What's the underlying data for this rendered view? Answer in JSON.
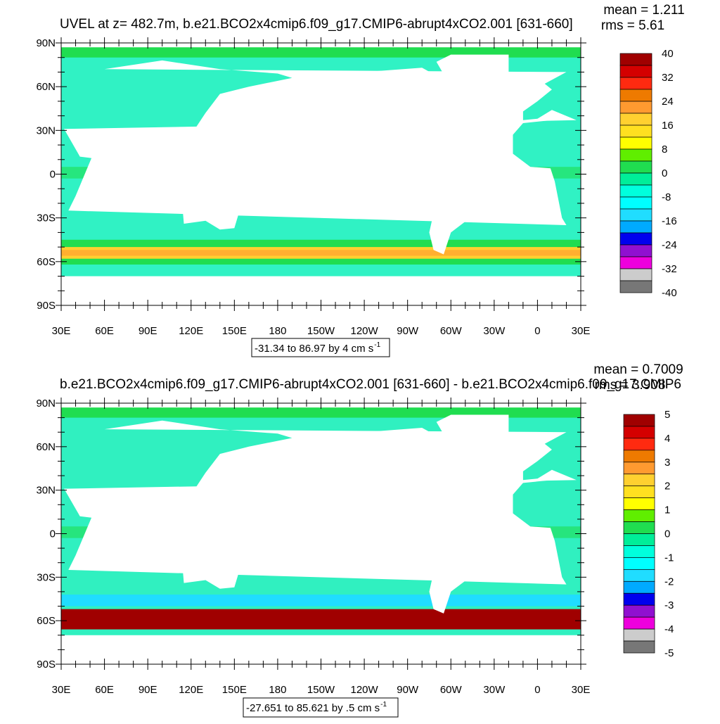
{
  "panels": [
    {
      "title": "UVEL at z= 482.7m, b.e21.BCO2x4cmip6.f09_g17.CMIP6-abrupt4xCO2.001 [631-660]",
      "mean": "mean = 1.211",
      "rms": "rms = 5.61",
      "lat_labels": [
        "90N",
        "60N",
        "30N",
        "0",
        "30S",
        "60S",
        "90S"
      ],
      "lon_labels": [
        "30E",
        "60E",
        "90E",
        "120E",
        "150E",
        "180",
        "150W",
        "120W",
        "90W",
        "60W",
        "30W",
        "0",
        "30E"
      ],
      "colorbar": {
        "labels": [
          "40",
          "32",
          "24",
          "16",
          "8",
          "0",
          "-8",
          "-16",
          "-24",
          "-32",
          "-40"
        ],
        "colors": [
          "#a00000",
          "#d40000",
          "#ff2a10",
          "#ee7a00",
          "#ff9a30",
          "#ffb040",
          "#ffd030",
          "#ffe020",
          "#ffff00",
          "#60ee00",
          "#20dd50",
          "#00ee99",
          "#00ffdd",
          "#00ffff",
          "#20ddff",
          "#00aaff",
          "#0070ff",
          "#0000ee",
          "#9010d0",
          "#ee00dd",
          "#cccccc",
          "#777777"
        ]
      },
      "range_text": "-31.34 to 86.97 by 4 cm s",
      "range_exp": "-1"
    },
    {
      "title": "b.e21.BCO2x4cmip6.f09_g17.CMIP6-abrupt4xCO2.001 [631-660] - b.e21.BCO2x4cmip6.f09_g17.CMIP6",
      "mean": "mean = 0.7009",
      "rms": "rms = 3.908",
      "lat_labels": [
        "90N",
        "60N",
        "30N",
        "0",
        "30S",
        "60S",
        "90S"
      ],
      "lon_labels": [
        "30E",
        "60E",
        "90E",
        "120E",
        "150E",
        "180",
        "150W",
        "120W",
        "90W",
        "60W",
        "30W",
        "0",
        "30E"
      ],
      "colorbar": {
        "labels": [
          "5",
          "4",
          "3",
          "2",
          "1",
          "0",
          "-1",
          "-2",
          "-3",
          "-4",
          "-5"
        ],
        "colors": [
          "#a00000",
          "#d40000",
          "#ff2a10",
          "#ee7a00",
          "#ff9a30",
          "#ffb040",
          "#ffd030",
          "#ffe020",
          "#ffff00",
          "#60ee00",
          "#20dd50",
          "#00ee99",
          "#00ffdd",
          "#00ffff",
          "#20ddff",
          "#00aaff",
          "#0070ff",
          "#0000ee",
          "#9010d0",
          "#ee00dd",
          "#cccccc",
          "#777777"
        ]
      },
      "range_text": "-27.651 to 85.621 by .5 cm s",
      "range_exp": "-1"
    }
  ]
}
